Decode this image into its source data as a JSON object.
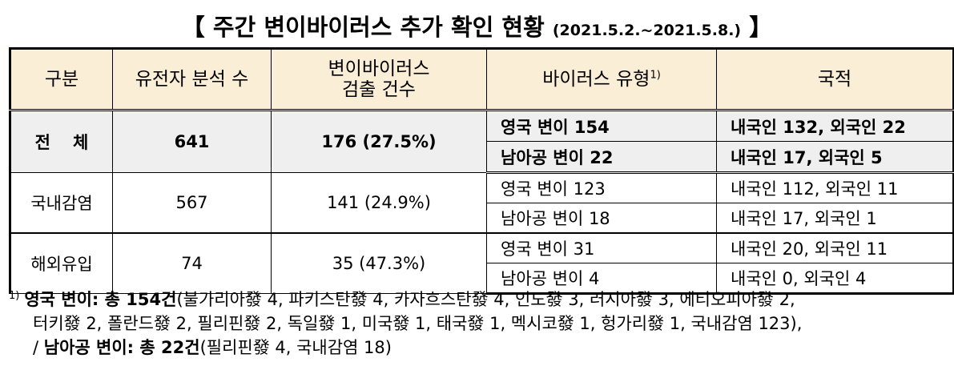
{
  "title": {
    "bracket_open": "【",
    "text": "주간 변이바이러스 추가 확인 현황",
    "period": "(2021.5.2.~2021.5.8.)",
    "bracket_close": "】"
  },
  "table": {
    "headers": {
      "category": "구분",
      "analyzed": "유전자 분석 수",
      "detected_line1": "변이바이러스",
      "detected_line2": "검출 건수",
      "virus_type": "바이러스 유형",
      "virus_type_sup": "1)",
      "nationality": "국적"
    },
    "total": {
      "label_a": "전",
      "label_b": "체",
      "analyzed": "641",
      "detected": "176 (27.5%)",
      "rows": [
        {
          "type": "영국 변이 154",
          "nationality": "내국인 132, 외국인 22"
        },
        {
          "type": "남아공 변이 22",
          "nationality": "내국인 17, 외국인 5"
        }
      ]
    },
    "domestic": {
      "label": "국내감염",
      "analyzed": "567",
      "detected": "141 (24.9%)",
      "rows": [
        {
          "type": "영국 변이 123",
          "nationality": "내국인 112, 외국인 11"
        },
        {
          "type": "남아공 변이 18",
          "nationality": "내국인 17, 외국인 1"
        }
      ]
    },
    "imported": {
      "label": "해외유입",
      "analyzed": "74",
      "detected": "35 (47.3%)",
      "rows": [
        {
          "type": "영국 변이 31",
          "nationality": "내국인 20, 외국인 11"
        },
        {
          "type": "남아공 변이 4",
          "nationality": "내국인 0, 외국인 4"
        }
      ]
    }
  },
  "footnote": {
    "marker": "1)",
    "uk_label": "영국 변이: 총 154건",
    "uk_detail_1": "(불가리아發 4, 파키스탄發 4, 카자흐스탄發 4, 인도發 3, 러시아發 3, 에티오피아發 2,",
    "uk_detail_2": "터키發 2, 폴란드發 2, 필리핀發 2,  독일發 1, 미국發 1, 태국發 1, 멕시코發 1, 헝가리發 1, 국내감염 123),",
    "sa_prefix": "/ ",
    "sa_label": "남아공 변이: 총 22건",
    "sa_detail": "(필리핀發 4, 국내감염 18)"
  }
}
